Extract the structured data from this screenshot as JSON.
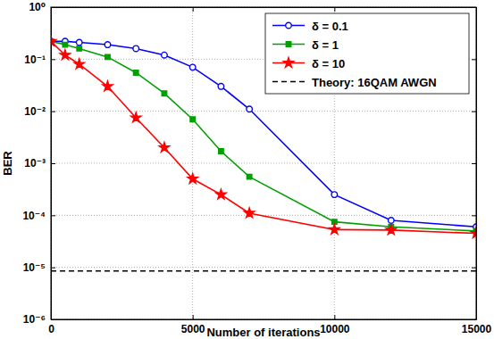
{
  "chart_data": {
    "type": "line",
    "x_label": "Number of iterations",
    "y_label": "BER",
    "log": "y",
    "grid": true,
    "legend": "upper right",
    "xlim": [
      0,
      15000
    ],
    "xticks": [
      0,
      5000,
      10000,
      15000
    ],
    "ylim": [
      1e-06,
      1
    ],
    "yticks": [
      {
        "value": 1e-06,
        "label": "10⁻⁶"
      },
      {
        "value": 1e-05,
        "label": "10⁻⁵"
      },
      {
        "value": 0.0001,
        "label": "10⁻⁴"
      },
      {
        "value": 0.001,
        "label": "10⁻³"
      },
      {
        "value": 0.01,
        "label": "10⁻²"
      },
      {
        "value": 0.1,
        "label": "10⁻¹"
      },
      {
        "value": 1,
        "label": "10⁰"
      }
    ],
    "series": [
      {
        "name": "δ = 0.1",
        "color": "#0000ff",
        "marker": "circle",
        "line_style": "solid",
        "x": [
          0,
          500,
          1000,
          2000,
          3000,
          4000,
          5000,
          6000,
          7000,
          10000,
          12000,
          15000
        ],
        "values": [
          0.22,
          0.22,
          0.21,
          0.19,
          0.16,
          0.12,
          0.07,
          0.03,
          0.011,
          0.00025,
          8e-05,
          6e-05
        ]
      },
      {
        "name": "δ = 1",
        "color": "#00a000",
        "marker": "square",
        "line_style": "solid",
        "x": [
          0,
          500,
          1000,
          2000,
          3000,
          4000,
          5000,
          6000,
          7000,
          10000,
          12000,
          15000
        ],
        "values": [
          0.22,
          0.19,
          0.16,
          0.11,
          0.055,
          0.022,
          0.007,
          0.0017,
          0.00055,
          7.5e-05,
          6e-05,
          5e-05
        ]
      },
      {
        "name": "δ = 10",
        "color": "#ff0000",
        "marker": "star",
        "line_style": "solid",
        "x": [
          0,
          500,
          1000,
          2000,
          3000,
          4000,
          5000,
          6000,
          7000,
          10000,
          12000,
          15000
        ],
        "values": [
          0.22,
          0.12,
          0.08,
          0.03,
          0.0075,
          0.002,
          0.0005,
          0.00025,
          0.00011,
          5.3e-05,
          5.2e-05,
          4.5e-05
        ]
      },
      {
        "name": "Theory: 16QAM AWGN",
        "color": "#000000",
        "marker": "none",
        "line_style": "dashed",
        "x": [
          0,
          15000
        ],
        "values": [
          8.5e-06,
          8.5e-06
        ]
      }
    ]
  }
}
